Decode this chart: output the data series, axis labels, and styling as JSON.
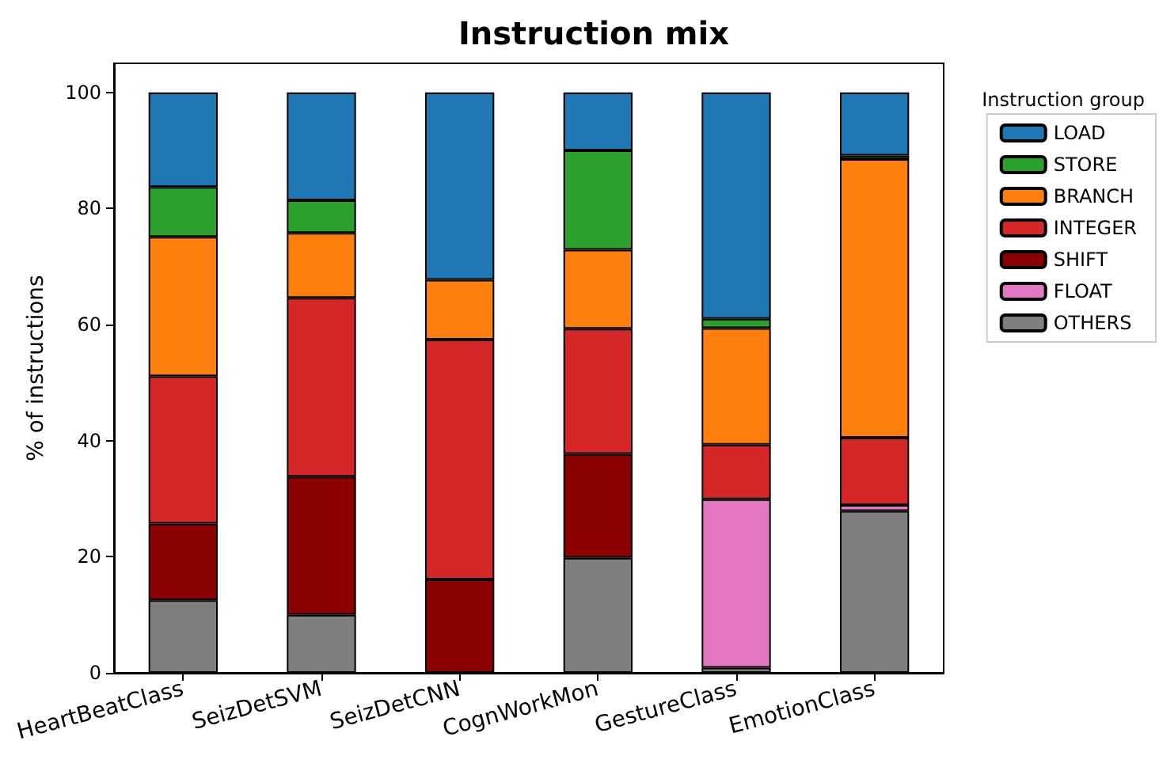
{
  "chart_data": {
    "type": "bar",
    "title": "Instruction mix",
    "ylabel": "% of instructions",
    "legend_title": "Instruction group",
    "stacked": true,
    "legend": "top right",
    "grid": false,
    "categories": [
      "HeartBeatClass",
      "SeizDetSVM",
      "SeizDetCNN",
      "CognWorkMon",
      "GestureClass",
      "EmotionClass"
    ],
    "ylim": [
      0,
      105
    ],
    "yticks": [
      0,
      20,
      40,
      60,
      80,
      100
    ],
    "series": [
      {
        "name": "OTHERS",
        "color": "#7f7f7f",
        "values": [
          12.5,
          10.0,
          0,
          19.8,
          0.9,
          27.9
        ]
      },
      {
        "name": "FLOAT",
        "color": "#e377c2",
        "values": [
          0,
          0,
          0,
          0,
          29.0,
          1.0
        ]
      },
      {
        "name": "SHIFT",
        "color": "#8b0000",
        "values": [
          13.2,
          23.8,
          16.1,
          17.9,
          0,
          0
        ]
      },
      {
        "name": "INTEGER",
        "color": "#d62728",
        "values": [
          25.4,
          30.8,
          41.3,
          21.6,
          9.4,
          11.6
        ]
      },
      {
        "name": "BRANCH",
        "color": "#ff7f0e",
        "values": [
          24.0,
          11.2,
          10.3,
          13.6,
          20.1,
          48.0
        ]
      },
      {
        "name": "STORE",
        "color": "#2ca02c",
        "values": [
          8.6,
          5.6,
          0,
          17.1,
          1.6,
          0.6
        ]
      },
      {
        "name": "LOAD",
        "color": "#1f77b4",
        "values": [
          16.3,
          18.6,
          32.3,
          10.0,
          39.0,
          10.9
        ]
      }
    ]
  }
}
